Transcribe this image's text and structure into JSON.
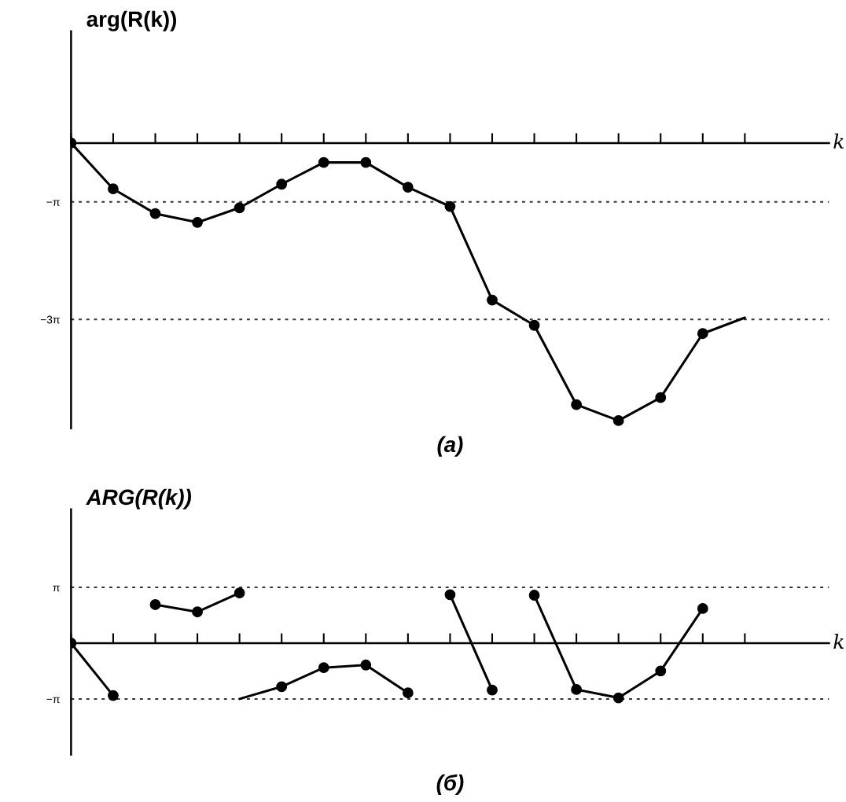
{
  "chart_data": [
    {
      "type": "line",
      "ylabel": "arg(R(k))",
      "xlabel": "k",
      "annotations": [
        "(а)"
      ],
      "categories": [
        null,
        null,
        null,
        null,
        null,
        null,
        null,
        null,
        null,
        null,
        null,
        null,
        null,
        null,
        null,
        null,
        null
      ],
      "series": [
        {
          "color": "#000000",
          "marker": "none",
          "values": [
            0,
            -2.45,
            -3.77,
            -4.24,
            -3.46,
            -2.2,
            -1.04,
            -1.04,
            -2.36,
            -3.39,
            -8.39,
            -9.74,
            -13.98,
            -14.83,
            -13.6,
            -10.18,
            -9.33
          ]
        },
        {
          "type": "scatter",
          "color": "#000000",
          "marker": "circle",
          "values": [
            0,
            -2.45,
            -3.77,
            -4.24,
            -3.46,
            -2.2,
            -1.04,
            -1.04,
            -2.36,
            -3.39,
            -8.39,
            -9.74,
            -13.98,
            -14.83,
            -13.6,
            -10.18,
            null
          ]
        }
      ],
      "ylim": [
        -15.24,
        5.97
      ],
      "yticks": [
        {
          "value": -3.1416,
          "label": "−π"
        },
        {
          "value": -9.4248,
          "label": "−3π"
        }
      ],
      "grid": "y",
      "tick_labels": "y"
    },
    {
      "type": "line",
      "ylabel": "ARG(R(k))",
      "xlabel": "k",
      "annotations": [
        "(б)"
      ],
      "categories": [
        null,
        null,
        null,
        null,
        null,
        null,
        null,
        null,
        null,
        null,
        null,
        null,
        null,
        null,
        null,
        null,
        null
      ],
      "series": [
        {
          "color": "#000000",
          "marker": "none",
          "values": [
            0,
            -2.95,
            null,
            null,
            null,
            null,
            null,
            null,
            null,
            null,
            null,
            null,
            null,
            null,
            null,
            null,
            null
          ]
        },
        {
          "color": "#000000",
          "marker": "none",
          "values": [
            null,
            null,
            2.17,
            1.76,
            2.83,
            null,
            null,
            null,
            null,
            null,
            null,
            null,
            null,
            null,
            null,
            null,
            null
          ]
        },
        {
          "color": "#000000",
          "marker": "none",
          "values": [
            null,
            null,
            null,
            null,
            -3.14,
            -2.45,
            -1.38,
            -1.23,
            -2.8,
            null,
            null,
            null,
            null,
            null,
            null,
            null,
            null
          ]
        },
        {
          "color": "#000000",
          "marker": "none",
          "values": [
            null,
            null,
            null,
            null,
            null,
            null,
            null,
            null,
            null,
            2.73,
            -2.64,
            null,
            null,
            null,
            null,
            null,
            null
          ]
        },
        {
          "color": "#000000",
          "marker": "none",
          "values": [
            null,
            null,
            null,
            null,
            null,
            null,
            null,
            null,
            null,
            null,
            null,
            2.7,
            -2.61,
            -3.08,
            -1.57,
            1.95,
            null
          ]
        },
        {
          "type": "scatter",
          "color": "#000000",
          "marker": "circle",
          "values": [
            0,
            -2.95,
            2.17,
            1.76,
            2.83,
            -2.45,
            -1.38,
            -1.23,
            -2.8,
            2.73,
            -2.64,
            2.7,
            -2.61,
            -3.08,
            -1.57,
            1.95,
            null
          ]
        }
      ],
      "ylim": [
        -6.28,
        7.54
      ],
      "yticks": [
        {
          "value": 3.1416,
          "label": "π"
        },
        {
          "value": -3.1416,
          "label": "−π"
        }
      ],
      "grid": "y",
      "tick_labels": "y"
    }
  ]
}
